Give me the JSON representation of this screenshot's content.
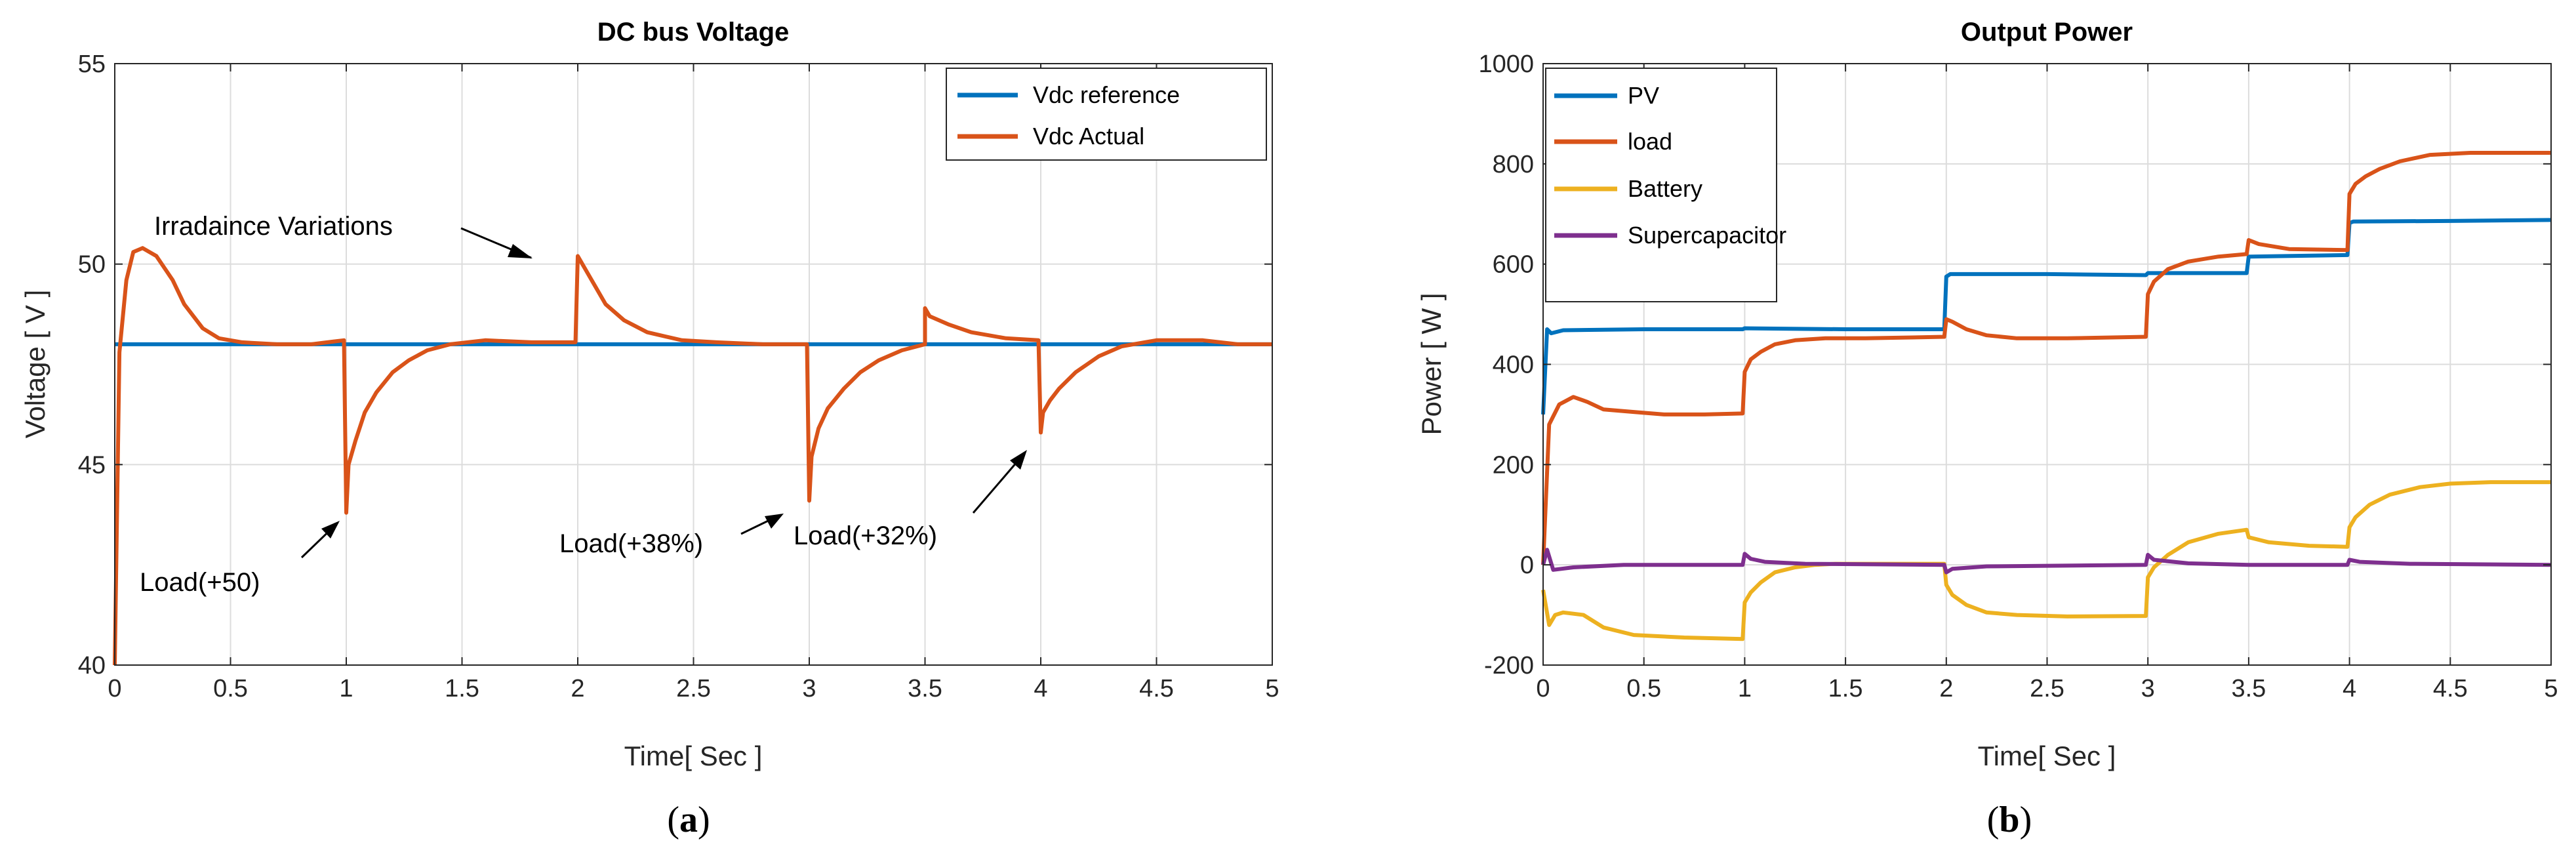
{
  "chart_data": [
    {
      "type": "line",
      "title": "DC bus Voltage",
      "xlabel": "Time[ Sec ]",
      "ylabel": "Voltage [ V ]",
      "xlim": [
        0,
        5
      ],
      "ylim": [
        40,
        55
      ],
      "xticks": [
        "0",
        "0.5",
        "1",
        "1.5",
        "2",
        "2.5",
        "3",
        "3.5",
        "4",
        "4.5",
        "5"
      ],
      "yticks": [
        "40",
        "45",
        "50",
        "55"
      ],
      "grid": true,
      "legend_position": "top-right",
      "panel_label": {
        "open": "(",
        "letter": "a",
        "close": ")"
      },
      "series": [
        {
          "name": "Vdc reference",
          "color": "#0072bd",
          "x": [
            0,
            5
          ],
          "y": [
            48,
            48
          ]
        },
        {
          "name": "Vdc Actual",
          "color": "#d95319",
          "x": [
            0,
            0.02,
            0.05,
            0.08,
            0.12,
            0.18,
            0.25,
            0.3,
            0.38,
            0.45,
            0.55,
            0.7,
            0.85,
            0.99,
            1.0,
            1.01,
            1.04,
            1.08,
            1.13,
            1.2,
            1.27,
            1.35,
            1.45,
            1.6,
            1.8,
            1.99,
            2.0,
            2.02,
            2.06,
            2.12,
            2.2,
            2.3,
            2.45,
            2.6,
            2.8,
            2.99,
            3.0,
            3.01,
            3.04,
            3.08,
            3.15,
            3.22,
            3.3,
            3.4,
            3.5,
            3.5,
            3.52,
            3.6,
            3.7,
            3.85,
            3.99,
            4.0,
            4.01,
            4.04,
            4.08,
            4.15,
            4.25,
            4.35,
            4.5,
            4.7,
            4.85,
            5.0
          ],
          "y": [
            40,
            47.8,
            49.6,
            50.3,
            50.4,
            50.2,
            49.6,
            49.0,
            48.4,
            48.15,
            48.05,
            48.0,
            48.0,
            48.1,
            43.8,
            45.0,
            45.6,
            46.3,
            46.8,
            47.3,
            47.6,
            47.85,
            48.0,
            48.1,
            48.05,
            48.05,
            50.2,
            50.0,
            49.6,
            49.0,
            48.6,
            48.3,
            48.1,
            48.05,
            48.0,
            48.0,
            44.1,
            45.2,
            45.9,
            46.4,
            46.9,
            47.3,
            47.6,
            47.85,
            48.0,
            48.9,
            48.7,
            48.5,
            48.3,
            48.15,
            48.1,
            45.8,
            46.3,
            46.6,
            46.9,
            47.3,
            47.7,
            47.95,
            48.1,
            48.1,
            48.0,
            48.0
          ]
        }
      ],
      "annotations": [
        {
          "text": "Irradaince Variations"
        },
        {
          "text": "Load(+50)"
        },
        {
          "text": "Load(+38%)"
        },
        {
          "text": "Load(+32%)"
        }
      ]
    },
    {
      "type": "line",
      "title": "Output Power",
      "xlabel": "Time[ Sec ]",
      "ylabel": "Power [ W ]",
      "xlim": [
        0,
        5
      ],
      "ylim": [
        -200,
        1000
      ],
      "xticks": [
        "0",
        "0.5",
        "1",
        "1.5",
        "2",
        "2.5",
        "3",
        "3.5",
        "4",
        "4.5",
        "5"
      ],
      "yticks": [
        "-200",
        "0",
        "200",
        "400",
        "600",
        "800",
        "1000"
      ],
      "grid": true,
      "legend_position": "top-left",
      "panel_label": {
        "open": "(",
        "letter": "b",
        "close": ")"
      },
      "series": [
        {
          "name": "PV",
          "color": "#0072bd",
          "x": [
            0,
            0.02,
            0.04,
            0.1,
            0.5,
            0.99,
            1.0,
            1.5,
            1.99,
            2.0,
            2.02,
            2.5,
            2.99,
            3.0,
            3.49,
            3.5,
            3.99,
            4.0,
            4.02,
            4.5,
            5.0
          ],
          "y": [
            300,
            470,
            462,
            468,
            470,
            470,
            472,
            470,
            470,
            575,
            580,
            580,
            578,
            582,
            582,
            615,
            618,
            682,
            685,
            686,
            688
          ]
        },
        {
          "name": "load",
          "color": "#d95319",
          "x": [
            0,
            0.03,
            0.08,
            0.15,
            0.22,
            0.3,
            0.45,
            0.6,
            0.8,
            0.99,
            1.0,
            1.03,
            1.08,
            1.15,
            1.25,
            1.4,
            1.6,
            1.99,
            2.0,
            2.03,
            2.1,
            2.2,
            2.35,
            2.6,
            2.99,
            3.0,
            3.03,
            3.1,
            3.2,
            3.35,
            3.49,
            3.5,
            3.55,
            3.7,
            3.99,
            4.0,
            4.03,
            4.08,
            4.15,
            4.25,
            4.4,
            4.6,
            4.8,
            5.0
          ],
          "y": [
            0,
            280,
            320,
            335,
            325,
            310,
            305,
            300,
            300,
            302,
            385,
            410,
            425,
            440,
            448,
            452,
            452,
            455,
            490,
            485,
            470,
            458,
            452,
            452,
            455,
            540,
            565,
            590,
            605,
            615,
            620,
            648,
            640,
            630,
            628,
            740,
            760,
            775,
            790,
            805,
            818,
            822,
            822,
            822
          ]
        },
        {
          "name": "Battery",
          "color": "#edb120",
          "x": [
            0,
            0.03,
            0.06,
            0.1,
            0.2,
            0.3,
            0.45,
            0.7,
            0.99,
            1.0,
            1.03,
            1.08,
            1.15,
            1.25,
            1.35,
            1.45,
            1.99,
            2.0,
            2.03,
            2.1,
            2.2,
            2.35,
            2.6,
            2.99,
            3.0,
            3.03,
            3.1,
            3.2,
            3.35,
            3.49,
            3.5,
            3.6,
            3.8,
            3.99,
            4.0,
            4.03,
            4.1,
            4.2,
            4.35,
            4.5,
            4.7,
            5.0
          ],
          "y": [
            -50,
            -120,
            -100,
            -95,
            -100,
            -125,
            -140,
            -145,
            -148,
            -75,
            -55,
            -35,
            -15,
            -5,
            0,
            2,
            2,
            -40,
            -60,
            -80,
            -95,
            -100,
            -103,
            -102,
            -25,
            -5,
            20,
            45,
            62,
            70,
            55,
            45,
            38,
            36,
            75,
            95,
            120,
            140,
            155,
            162,
            165,
            165
          ]
        },
        {
          "name": "Supercapacitor",
          "color": "#7e2f8e",
          "x": [
            0,
            0.02,
            0.05,
            0.15,
            0.4,
            0.99,
            1.0,
            1.03,
            1.1,
            1.3,
            1.99,
            2.0,
            2.03,
            2.2,
            2.99,
            3.0,
            3.03,
            3.2,
            3.5,
            3.99,
            4.0,
            4.05,
            4.3,
            5.0
          ],
          "y": [
            0,
            30,
            -10,
            -5,
            0,
            0,
            22,
            12,
            6,
            2,
            0,
            -15,
            -8,
            -3,
            0,
            20,
            10,
            3,
            0,
            0,
            10,
            6,
            2,
            0
          ]
        }
      ]
    }
  ]
}
